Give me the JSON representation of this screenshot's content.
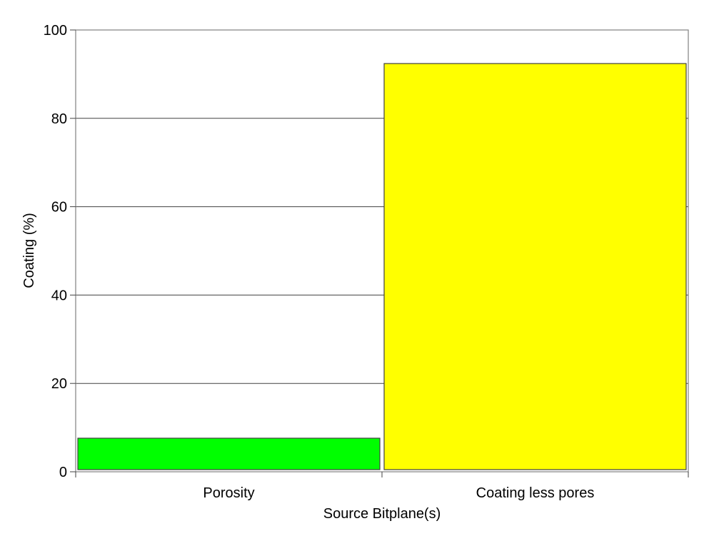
{
  "chart_data": {
    "type": "bar",
    "categories": [
      "Porosity",
      "Coating less pores"
    ],
    "values": [
      7.6,
      92.4
    ],
    "colors": [
      "#00ff00",
      "#ffff00"
    ],
    "xlabel": "Source Bitplane(s)",
    "ylabel": "Coating (%)",
    "ylim": [
      0,
      100
    ],
    "yticks": [
      0,
      20,
      40,
      60,
      80,
      100
    ],
    "grid": true
  }
}
